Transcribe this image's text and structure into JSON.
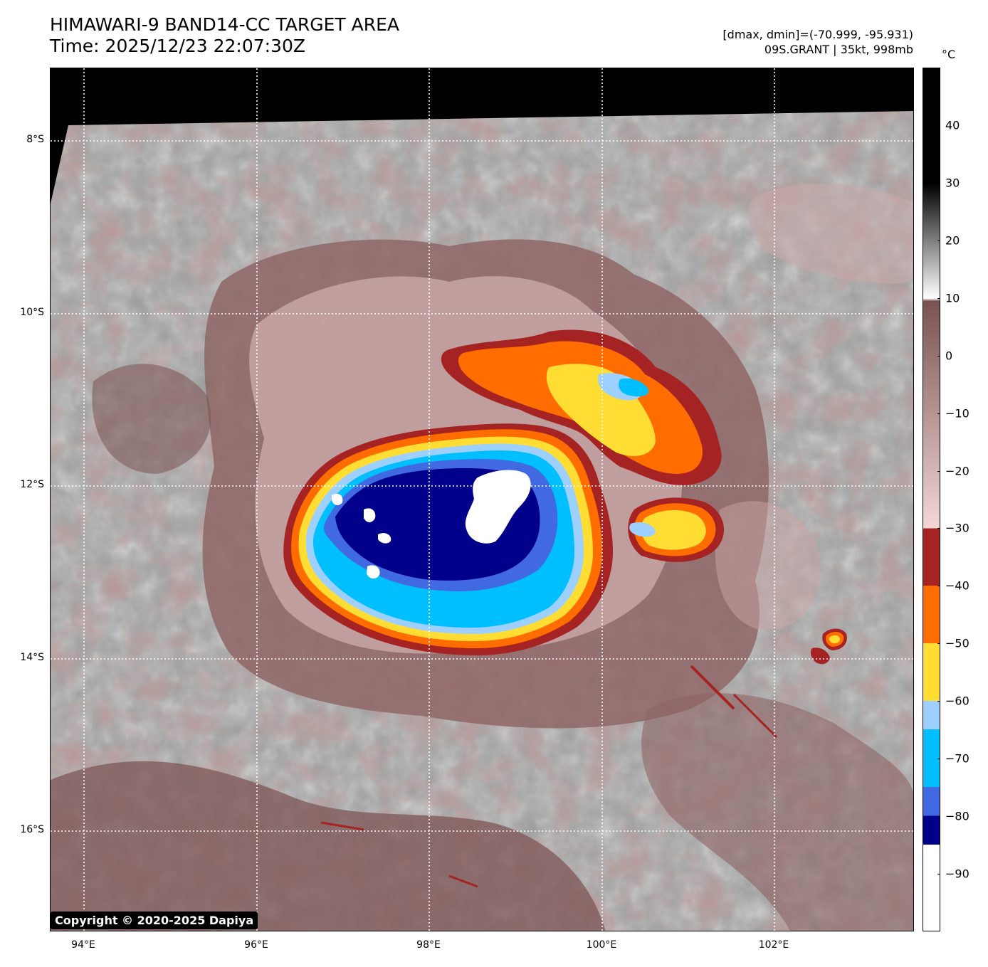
{
  "header": {
    "title_line1": "HIMAWARI-9 BAND14-CC TARGET AREA",
    "title_line2": "Time: 2025/12/23 22:07:30Z",
    "info_line1": "[dmax, dmin]=(-70.999, -95.931)",
    "info_line2": "09S.GRANT | 35kt, 998mb"
  },
  "axes": {
    "lat_labels": [
      "8°S",
      "10°S",
      "12°S",
      "14°S",
      "16°S"
    ],
    "lon_labels": [
      "94°E",
      "96°E",
      "98°E",
      "100°E",
      "102°E"
    ]
  },
  "colorbar": {
    "unit": "°C",
    "labels": [
      "40",
      "30",
      "20",
      "10",
      "0",
      "−10",
      "−20",
      "−30",
      "−40",
      "−50",
      "−60",
      "−70",
      "−80",
      "−90"
    ],
    "range": [
      -100,
      50
    ],
    "colors": {
      "warm_top": "#000000",
      "gray_mid": "#808080",
      "white_10": "#ffffff",
      "brown_0": "#7a5252",
      "pink_-30": "#f3d7d7",
      "darkred": "#a52323",
      "orange": "#ff6d00",
      "yellow": "#ffdd33",
      "lightblue": "#9dcfff",
      "deepskyblue": "#00bfff",
      "royalblue": "#4169e1",
      "navy": "#00008b",
      "white_cold": "#ffffff"
    }
  },
  "copyright": "Copyright © 2020-2025 Dapiya"
}
